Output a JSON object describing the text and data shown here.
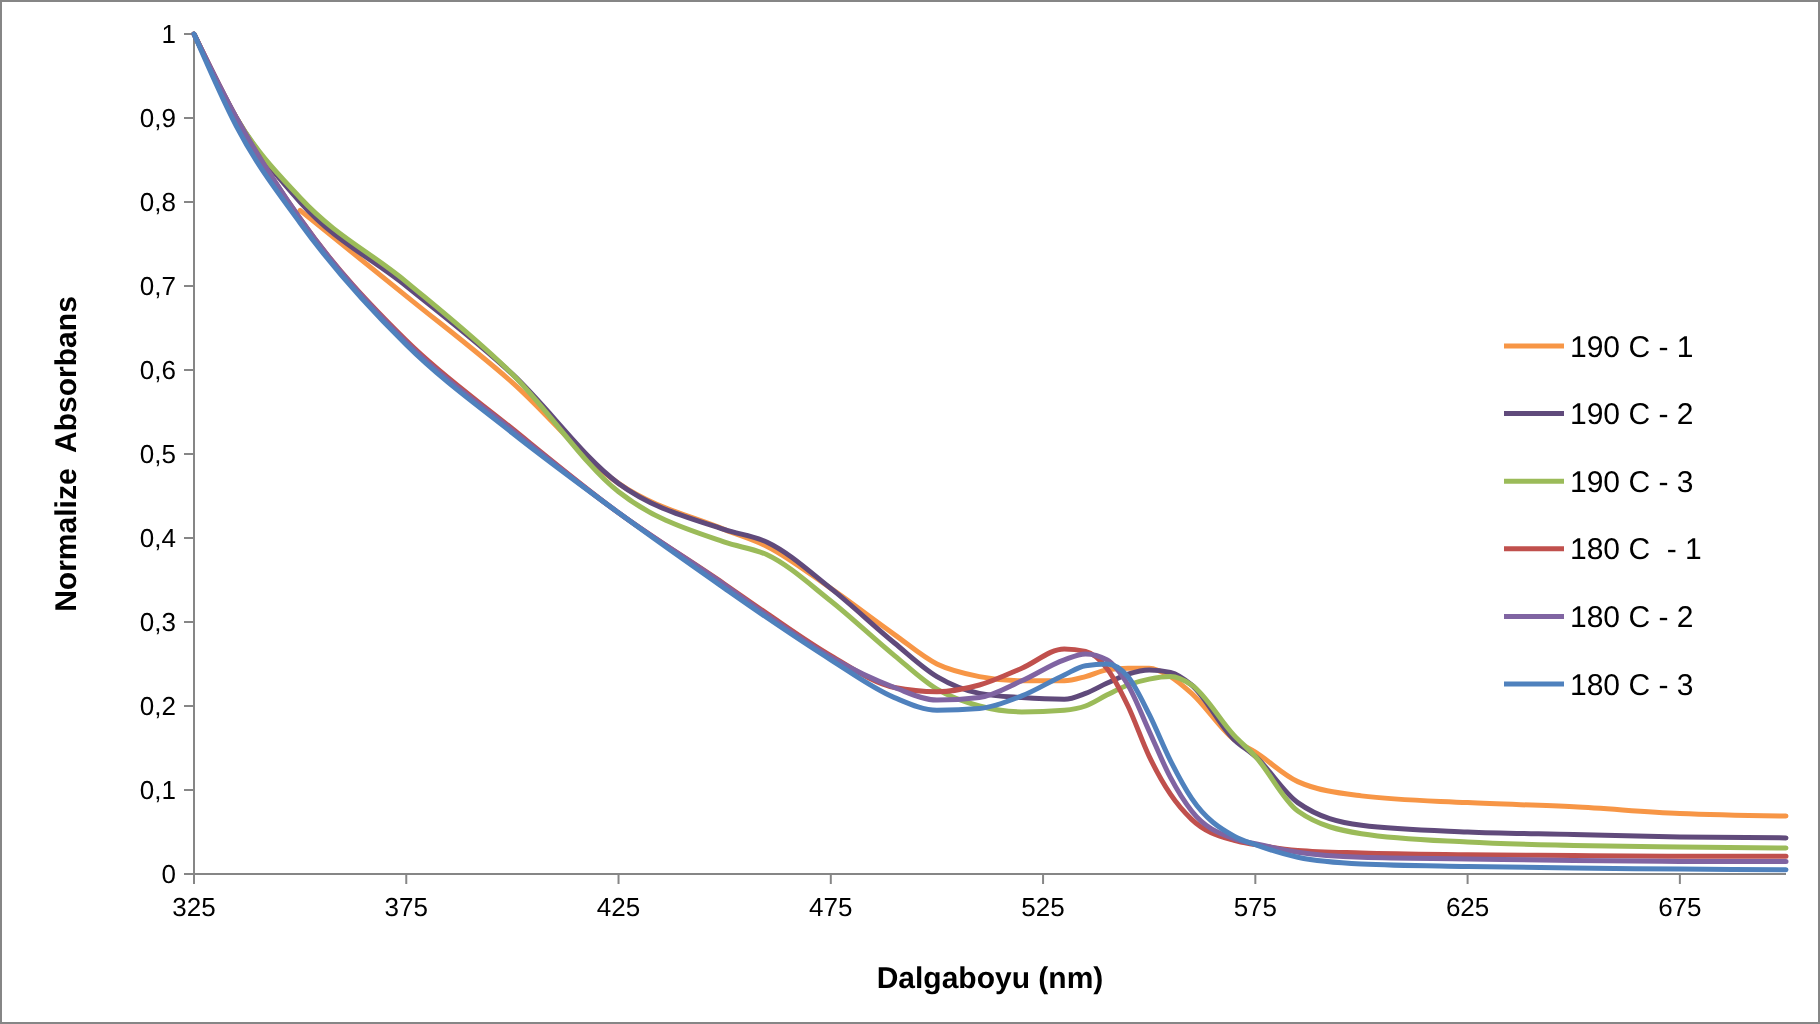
{
  "chart_data": {
    "type": "line",
    "xlabel": "Dalgaboyu (nm)",
    "ylabel": "Normalize  Absorbans",
    "x": [
      325,
      335,
      350,
      375,
      400,
      425,
      450,
      460,
      475,
      490,
      500,
      510,
      520,
      530,
      535,
      540,
      545,
      550,
      555,
      560,
      570,
      575,
      585,
      600,
      625,
      650,
      675,
      700
    ],
    "series": [
      {
        "name": "190 C - 1",
        "color": "#f79646",
        "values": [
          null,
          null,
          0.79,
          0.688,
          0.585,
          0.465,
          0.41,
          0.39,
          0.34,
          0.285,
          0.25,
          0.235,
          0.23,
          0.23,
          0.235,
          0.243,
          0.245,
          0.245,
          0.235,
          0.215,
          0.16,
          0.145,
          0.11,
          0.093,
          0.085,
          0.08,
          0.072,
          0.069
        ]
      },
      {
        "name": "190 C - 2",
        "color": "#604a7b",
        "values": [
          1,
          0.9,
          0.8,
          0.7,
          0.595,
          0.465,
          0.41,
          0.395,
          0.34,
          0.275,
          0.235,
          0.215,
          0.21,
          0.208,
          0.215,
          0.227,
          0.238,
          0.243,
          0.24,
          0.225,
          0.16,
          0.14,
          0.085,
          0.058,
          0.05,
          0.047,
          0.044,
          0.043
        ]
      },
      {
        "name": "190 C - 3",
        "color": "#9bbb59",
        "values": [
          1,
          0.9,
          0.805,
          0.705,
          0.595,
          0.455,
          0.395,
          0.38,
          0.325,
          0.26,
          0.22,
          0.2,
          0.193,
          0.195,
          0.2,
          0.213,
          0.225,
          0.232,
          0.235,
          0.225,
          0.165,
          0.14,
          0.075,
          0.048,
          0.038,
          0.034,
          0.032,
          0.031
        ]
      },
      {
        "name": "180 C  - 1",
        "color": "#c0504d",
        "values": [
          1,
          0.9,
          0.78,
          0.635,
          0.53,
          0.43,
          0.345,
          0.31,
          0.26,
          0.222,
          0.217,
          0.225,
          0.245,
          0.268,
          0.265,
          0.245,
          0.2,
          0.14,
          0.095,
          0.065,
          0.04,
          0.035,
          0.028,
          0.025,
          0.023,
          0.022,
          0.021,
          0.021
        ]
      },
      {
        "name": "180 C - 2",
        "color": "#8064a2",
        "values": [
          1,
          0.9,
          0.78,
          0.633,
          0.528,
          0.43,
          0.344,
          0.308,
          0.258,
          0.222,
          0.207,
          0.21,
          0.23,
          0.255,
          0.262,
          0.255,
          0.225,
          0.17,
          0.115,
          0.075,
          0.042,
          0.036,
          0.026,
          0.02,
          0.018,
          0.016,
          0.015,
          0.015
        ]
      },
      {
        "name": "180 C - 3",
        "color": "#4f81bd",
        "values": [
          1,
          0.89,
          0.775,
          0.63,
          0.525,
          0.43,
          0.34,
          0.305,
          0.255,
          0.21,
          0.195,
          0.197,
          0.212,
          0.237,
          0.248,
          0.25,
          0.235,
          0.19,
          0.135,
          0.09,
          0.045,
          0.035,
          0.02,
          0.012,
          0.009,
          0.007,
          0.006,
          0.005
        ]
      }
    ],
    "xlim": [
      325,
      700
    ],
    "xticks": [
      325,
      375,
      425,
      475,
      525,
      575,
      625,
      675
    ],
    "ylim": [
      0,
      1
    ],
    "yticks": [
      0,
      {
        "value": 0.1,
        "label": "0,1"
      },
      {
        "value": 0.2,
        "label": "0,2"
      },
      {
        "value": 0.3,
        "label": "0,3"
      },
      {
        "value": 0.4,
        "label": "0,4"
      },
      {
        "value": 0.5,
        "label": "0,5"
      },
      {
        "value": 0.6,
        "label": "0,6"
      },
      {
        "value": 0.7,
        "label": "0,7"
      },
      {
        "value": 0.8,
        "label": "0,8"
      },
      {
        "value": 0.9,
        "label": "0,9"
      },
      1
    ],
    "grid": false,
    "legend": "right",
    "marker": "none",
    "line_style": "solid"
  }
}
